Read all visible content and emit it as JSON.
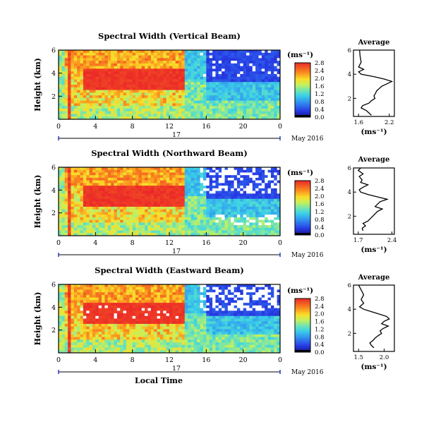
{
  "chart_data": [
    {
      "type": "heatmap",
      "title": "Spectral Width (Vertical Beam)",
      "ylabel": "Height (km)",
      "xlabel": "",
      "x_ticks": [
        "0",
        "4",
        "8",
        "12",
        "16",
        "20",
        "0"
      ],
      "y_ticks": [
        "6",
        "4",
        "2"
      ],
      "xlim": [
        0,
        24
      ],
      "ylim": [
        0,
        6
      ],
      "date_axis": {
        "day": "17",
        "month_year": "May 2016"
      },
      "colorbar": {
        "unit": "(ms⁻¹)",
        "ticks": [
          "0.0",
          "0.4",
          "0.8",
          "1.2",
          "1.6",
          "2.0",
          "2.4",
          "2.8"
        ],
        "range": [
          0,
          2.8
        ]
      },
      "average_profile": {
        "title": "Average",
        "xlabel": "(ms⁻¹)",
        "x_ticks": [
          "1.6",
          "2.2"
        ],
        "xlim": [
          1.5,
          2.3
        ],
        "y_ticks": [
          "6",
          "4",
          "2"
        ],
        "ylim": [
          0.5,
          6
        ],
        "points": [
          [
            1.62,
            6.0
          ],
          [
            1.63,
            5.5
          ],
          [
            1.65,
            5.0
          ],
          [
            1.6,
            4.6
          ],
          [
            1.7,
            4.4
          ],
          [
            1.6,
            4.2
          ],
          [
            1.65,
            4.0
          ],
          [
            1.9,
            3.8
          ],
          [
            2.1,
            3.6
          ],
          [
            2.25,
            3.4
          ],
          [
            2.15,
            3.2
          ],
          [
            2.05,
            3.0
          ],
          [
            2.0,
            2.8
          ],
          [
            1.95,
            2.6
          ],
          [
            1.93,
            2.4
          ],
          [
            1.9,
            2.2
          ],
          [
            1.92,
            2.0
          ],
          [
            1.85,
            1.8
          ],
          [
            1.8,
            1.6
          ],
          [
            1.68,
            1.4
          ],
          [
            1.65,
            1.2
          ],
          [
            1.75,
            1.0
          ],
          [
            1.8,
            0.8
          ],
          [
            1.85,
            0.6
          ]
        ]
      }
    },
    {
      "type": "heatmap",
      "title": "Spectral Width (Northward Beam)",
      "ylabel": "Height (km)",
      "xlabel": "",
      "x_ticks": [
        "0",
        "4",
        "8",
        "12",
        "16",
        "20",
        "0"
      ],
      "y_ticks": [
        "6",
        "4",
        "2"
      ],
      "xlim": [
        0,
        24
      ],
      "ylim": [
        0,
        6
      ],
      "date_axis": {
        "day": "17",
        "month_year": "May 2016"
      },
      "colorbar": {
        "unit": "(ms⁻¹)",
        "ticks": [
          "0.0",
          "0.4",
          "0.8",
          "1.2",
          "1.6",
          "2.0",
          "2.4",
          "2.8"
        ],
        "range": [
          0,
          2.8
        ]
      },
      "average_profile": {
        "title": "Average",
        "xlabel": "(ms⁻¹)",
        "x_ticks": [
          "1.7",
          "2.4"
        ],
        "xlim": [
          1.6,
          2.45
        ],
        "y_ticks": [
          "6",
          "4",
          "2"
        ],
        "ylim": [
          0.5,
          6
        ],
        "points": [
          [
            1.75,
            6.0
          ],
          [
            1.7,
            5.8
          ],
          [
            1.8,
            5.5
          ],
          [
            1.72,
            5.3
          ],
          [
            1.78,
            5.0
          ],
          [
            1.75,
            4.8
          ],
          [
            1.9,
            4.6
          ],
          [
            1.8,
            4.4
          ],
          [
            1.72,
            4.2
          ],
          [
            1.75,
            4.0
          ],
          [
            1.9,
            3.8
          ],
          [
            2.1,
            3.6
          ],
          [
            2.3,
            3.4
          ],
          [
            2.15,
            3.2
          ],
          [
            2.1,
            3.0
          ],
          [
            2.05,
            2.8
          ],
          [
            2.2,
            2.6
          ],
          [
            2.1,
            2.4
          ],
          [
            2.05,
            2.2
          ],
          [
            2.0,
            2.0
          ],
          [
            1.95,
            1.8
          ],
          [
            1.9,
            1.6
          ],
          [
            1.8,
            1.4
          ],
          [
            1.85,
            1.2
          ],
          [
            1.78,
            1.0
          ],
          [
            1.8,
            0.8
          ]
        ]
      }
    },
    {
      "type": "heatmap",
      "title": "Spectral Width (Eastward Beam)",
      "ylabel": "Height (km)",
      "xlabel": "Local Time",
      "x_ticks": [
        "0",
        "4",
        "8",
        "12",
        "16",
        "20",
        "0"
      ],
      "y_ticks": [
        "6",
        "4",
        "2"
      ],
      "xlim": [
        0,
        24
      ],
      "ylim": [
        0,
        6
      ],
      "date_axis": {
        "day": "17",
        "month_year": "May 2016"
      },
      "colorbar": {
        "unit": "(ms⁻¹)",
        "ticks": [
          "0.0",
          "0.4",
          "0.8",
          "1.2",
          "1.6",
          "2.0",
          "2.4",
          "2.8"
        ],
        "range": [
          0,
          2.8
        ]
      },
      "average_profile": {
        "title": "Average",
        "xlabel": "(ms⁻¹)",
        "x_ticks": [
          "1.5",
          "2.0"
        ],
        "xlim": [
          1.4,
          2.2
        ],
        "y_ticks": [
          "6",
          "4",
          "2"
        ],
        "ylim": [
          0.5,
          6
        ],
        "points": [
          [
            1.5,
            6.0
          ],
          [
            1.55,
            5.6
          ],
          [
            1.6,
            5.2
          ],
          [
            1.55,
            4.8
          ],
          [
            1.6,
            4.5
          ],
          [
            1.52,
            4.2
          ],
          [
            1.6,
            4.0
          ],
          [
            1.75,
            3.8
          ],
          [
            1.9,
            3.6
          ],
          [
            2.05,
            3.4
          ],
          [
            2.1,
            3.2
          ],
          [
            2.0,
            3.0
          ],
          [
            1.95,
            2.8
          ],
          [
            2.08,
            2.6
          ],
          [
            1.98,
            2.4
          ],
          [
            1.92,
            2.2
          ],
          [
            1.95,
            2.0
          ],
          [
            1.88,
            1.8
          ],
          [
            1.82,
            1.6
          ],
          [
            1.78,
            1.4
          ],
          [
            1.72,
            1.2
          ],
          [
            1.75,
            1.0
          ],
          [
            1.8,
            0.8
          ]
        ]
      }
    }
  ]
}
